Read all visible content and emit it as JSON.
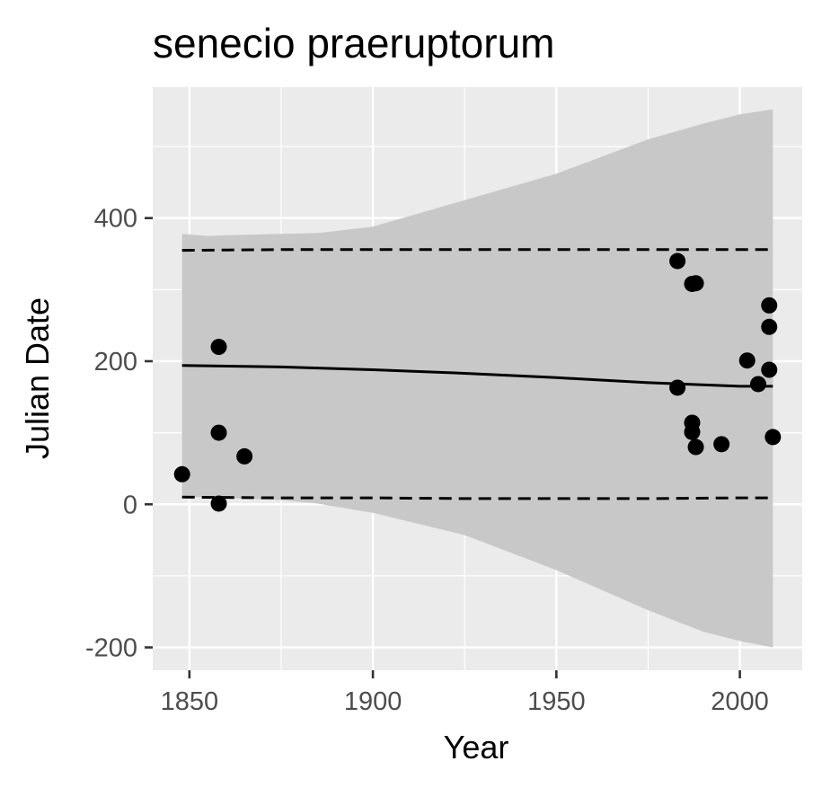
{
  "chart_data": {
    "type": "scatter",
    "title": "senecio praeruptorum",
    "xlabel": "Year",
    "ylabel": "Julian Date",
    "xlim": [
      1840,
      2017
    ],
    "ylim": [
      -232,
      583
    ],
    "x_ticks": [
      1850,
      1900,
      1950,
      2000
    ],
    "x_tick_labels": [
      "1850",
      "1900",
      "1950",
      "2000"
    ],
    "y_ticks": [
      -200,
      0,
      200,
      400
    ],
    "y_tick_labels": [
      "-200",
      "0",
      "200",
      "400"
    ],
    "x_minor_ticks": [
      1875,
      1925,
      1975
    ],
    "y_minor_ticks": [
      -100,
      100,
      300,
      500
    ],
    "grid": true,
    "legend": "none",
    "colors": {
      "panel": "#ebebeb",
      "ribbon": "#c8c8c8",
      "points": "#000000",
      "line": "#000000"
    },
    "points": [
      {
        "x": 1848,
        "y": 42
      },
      {
        "x": 1858,
        "y": 220
      },
      {
        "x": 1858,
        "y": 100
      },
      {
        "x": 1858,
        "y": 1
      },
      {
        "x": 1865,
        "y": 67
      },
      {
        "x": 1983,
        "y": 340
      },
      {
        "x": 1983,
        "y": 163
      },
      {
        "x": 1987,
        "y": 308
      },
      {
        "x": 1988,
        "y": 309
      },
      {
        "x": 1987,
        "y": 114
      },
      {
        "x": 1987,
        "y": 101
      },
      {
        "x": 1988,
        "y": 80
      },
      {
        "x": 1995,
        "y": 84
      },
      {
        "x": 2002,
        "y": 201
      },
      {
        "x": 2005,
        "y": 168
      },
      {
        "x": 2008,
        "y": 278
      },
      {
        "x": 2008,
        "y": 248
      },
      {
        "x": 2008,
        "y": 188
      },
      {
        "x": 2009,
        "y": 94
      }
    ],
    "fit_line": {
      "x": [
        1848,
        1875,
        1900,
        1925,
        1950,
        1975,
        2000,
        2009
      ],
      "y": [
        194,
        192,
        188,
        183,
        177,
        170,
        165,
        165
      ]
    },
    "confidence_band": {
      "x": [
        1848,
        1855,
        1860,
        1875,
        1885,
        1900,
        1925,
        1950,
        1975,
        1990,
        2000,
        2009
      ],
      "upper": [
        378,
        375,
        376,
        378,
        379,
        388,
        425,
        462,
        510,
        532,
        545,
        552
      ],
      "lower": [
        10,
        10,
        9,
        6,
        1,
        -12,
        -43,
        -92,
        -148,
        -178,
        -191,
        -200
      ]
    },
    "upper_bound_dashed": {
      "x": [
        1848,
        1875,
        1900,
        1925,
        1950,
        1975,
        2000,
        2009
      ],
      "y": [
        355,
        356,
        356,
        356,
        356,
        356,
        356,
        356
      ]
    },
    "lower_bound_dashed": {
      "x": [
        1848,
        1875,
        1900,
        1925,
        1950,
        1975,
        2000,
        2009
      ],
      "y": [
        10,
        9,
        9,
        8,
        8,
        8,
        9,
        9
      ]
    }
  }
}
